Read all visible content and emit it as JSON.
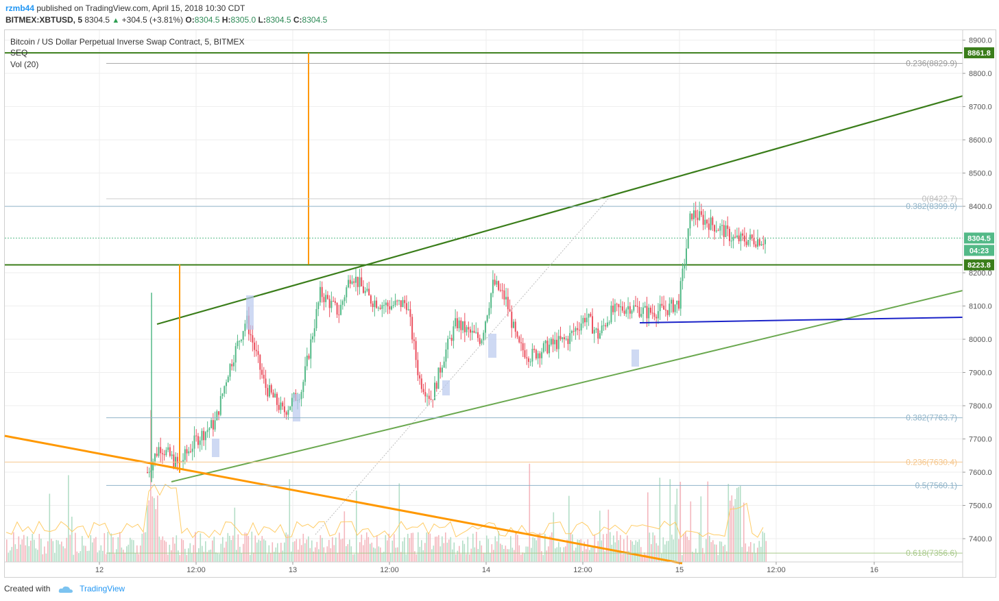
{
  "header": {
    "user": "rzmb44",
    "published": "published on TradingView.com, April 15, 2018 10:30 CDT",
    "symbol": "BITMEX:XBTUSD, 5",
    "price": "8304.5",
    "change": "+304.5 (+3.81%)",
    "o_label": "O:",
    "o_val": "8304.5",
    "h_label": "H:",
    "h_val": "8305.0",
    "l_label": "L:",
    "l_val": "8304.5",
    "c_label": "C:",
    "c_val": "8304.5"
  },
  "legend": {
    "title": "Bitcoin / US Dollar Perpetual Inverse Swap Contract, 5, BITMEX",
    "seq": "SEQ",
    "vol": "Vol (20)"
  },
  "footer": {
    "created": "Created with",
    "brand": "TradingView"
  },
  "colors": {
    "up": "#53b987",
    "down": "#eb4d5c",
    "dark_green": "#3a7d1a",
    "light_green": "#6aa84f",
    "orange": "#ff9800",
    "blue": "#1a22c8",
    "fib_gray": "#999999"
  },
  "chart_data": {
    "type": "candlestick",
    "ylim": [
      7330,
      8930
    ],
    "y_ticks": [
      "8900.0",
      "8800.0",
      "8700.0",
      "8600.0",
      "8500.0",
      "8400.0",
      "8200.0",
      "8100.0",
      "8000.0",
      "7900.0",
      "7800.0",
      "7700.0",
      "7600.0",
      "7500.0",
      "7400.0"
    ],
    "x_ticks": [
      "12",
      "12:00",
      "13",
      "12:00",
      "14",
      "12:00",
      "15",
      "12:00",
      "16"
    ],
    "price_labels": [
      {
        "text": "8861.8",
        "value": 8861.8,
        "color": "#3a7d1a"
      },
      {
        "text": "8304.5",
        "value": 8304.5,
        "color": "#53b987"
      },
      {
        "text": "04:23",
        "value": 8270,
        "color": "#53b987"
      },
      {
        "text": "8223.8",
        "value": 8223.8,
        "color": "#3a7d1a"
      }
    ],
    "horizontal_lines": [
      8861.8,
      8223.8
    ],
    "fib_labels": [
      {
        "text": "0.236(8829.9)",
        "value": 8829.9,
        "color": "#999999"
      },
      {
        "text": "0(8422.7)",
        "value": 8422.7,
        "color": "#bbbbbb"
      },
      {
        "text": "0.382(8399.9)",
        "value": 8399.9,
        "color": "#8fb3c8"
      },
      {
        "text": "0.382(7763.7)",
        "value": 7763.7,
        "color": "#8fb3c8"
      },
      {
        "text": "0.236(7630.4)",
        "value": 7630.4,
        "color": "#f5c58a"
      },
      {
        "text": "0.5(7560.1)",
        "value": 7560.1,
        "color": "#8fb3c8"
      },
      {
        "text": "0.618(7356.6)",
        "value": 7356.6,
        "color": "#a8c98a"
      }
    ],
    "price_path": [
      [
        0.0,
        7600
      ],
      [
        0.02,
        7680
      ],
      [
        0.05,
        7620
      ],
      [
        0.08,
        7700
      ],
      [
        0.11,
        7750
      ],
      [
        0.13,
        7900
      ],
      [
        0.16,
        8060
      ],
      [
        0.19,
        7860
      ],
      [
        0.22,
        7780
      ],
      [
        0.25,
        7850
      ],
      [
        0.28,
        8140
      ],
      [
        0.31,
        8080
      ],
      [
        0.33,
        8200
      ],
      [
        0.36,
        8120
      ],
      [
        0.39,
        8100
      ],
      [
        0.42,
        8110
      ],
      [
        0.44,
        7880
      ],
      [
        0.46,
        7820
      ],
      [
        0.48,
        7950
      ],
      [
        0.5,
        8050
      ],
      [
        0.52,
        8020
      ],
      [
        0.54,
        8000
      ],
      [
        0.56,
        8170
      ],
      [
        0.58,
        8120
      ],
      [
        0.6,
        7980
      ],
      [
        0.62,
        7950
      ],
      [
        0.65,
        7980
      ],
      [
        0.68,
        8000
      ],
      [
        0.71,
        8070
      ],
      [
        0.73,
        8010
      ],
      [
        0.75,
        8080
      ],
      [
        0.78,
        8100
      ],
      [
        0.81,
        8080
      ],
      [
        0.84,
        8090
      ],
      [
        0.86,
        8110
      ],
      [
        0.88,
        8380
      ],
      [
        0.91,
        8350
      ],
      [
        0.93,
        8330
      ],
      [
        0.95,
        8300
      ]
    ]
  }
}
